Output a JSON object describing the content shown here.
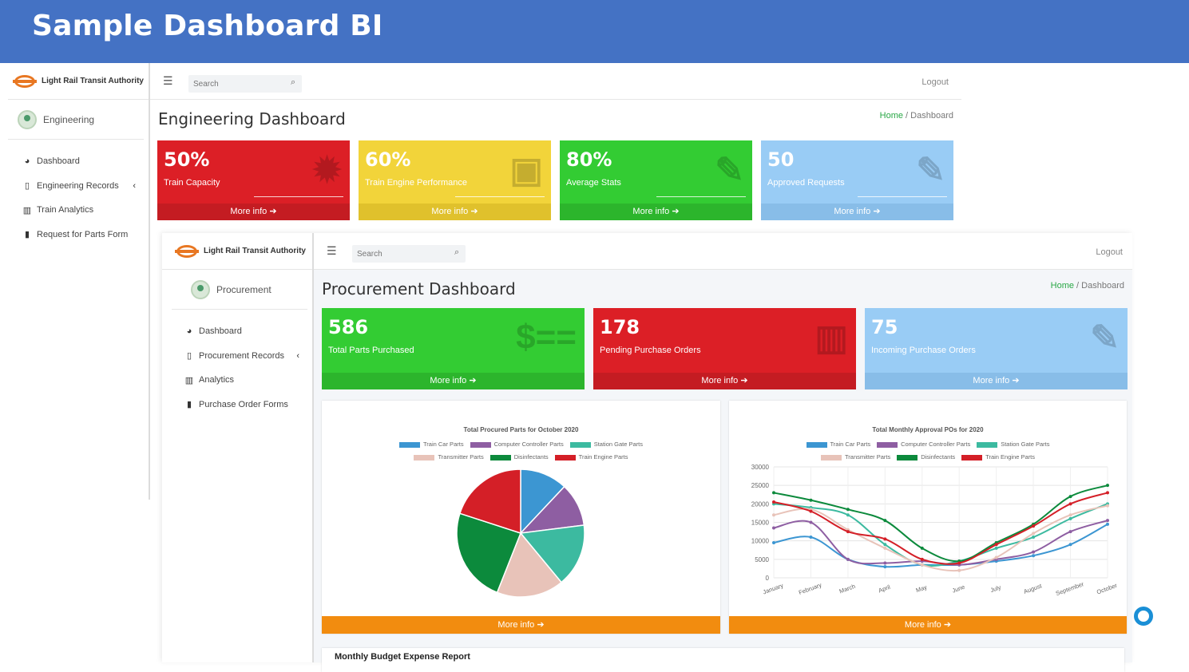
{
  "banner": {
    "title": "Sample Dashboard BI"
  },
  "eng": {
    "brand": "Light Rail Transit Authority",
    "user": "Engineering",
    "menu": [
      {
        "icon": "tachometer-icon",
        "glyph": "◕",
        "label": "Dashboard"
      },
      {
        "icon": "clipboard-icon",
        "glyph": "▯",
        "label": "Engineering Records",
        "chevron": "‹"
      },
      {
        "icon": "bar-chart-icon",
        "glyph": "▥",
        "label": "Train Analytics"
      },
      {
        "icon": "file-icon",
        "glyph": "▮",
        "label": "Request for Parts Form"
      }
    ],
    "search_placeholder": "Search",
    "logout": "Logout",
    "page_title": "Engineering Dashboard",
    "breadcrumb": {
      "home": "Home",
      "sep": "/",
      "current": "Dashboard"
    },
    "boxes": [
      {
        "num": "50%",
        "label": "Train Capacity",
        "foot": "More info ➔",
        "color": "#dc1f26",
        "foot_color": "#c41c22",
        "icon": "gear-icon",
        "glyph": "✹"
      },
      {
        "num": "60%",
        "label": "Train Engine Performance",
        "foot": "More info ➔",
        "color": "#f2d43a",
        "foot_color": "#e0c12c",
        "icon": "train-icon",
        "glyph": "▣"
      },
      {
        "num": "80%",
        "label": "Average Stats",
        "foot": "More info ➔",
        "color": "#33cc33",
        "foot_color": "#2cb52c",
        "icon": "signature-icon",
        "glyph": "✎"
      },
      {
        "num": "50",
        "label": "Approved Requests",
        "foot": "More info ➔",
        "color": "#99ccf5",
        "foot_color": "#88bde8",
        "icon": "signature-icon",
        "glyph": "✎"
      }
    ]
  },
  "pro": {
    "brand": "Light Rail Transit Authority",
    "user": "Procurement",
    "menu": [
      {
        "icon": "tachometer-icon",
        "glyph": "◕",
        "label": "Dashboard"
      },
      {
        "icon": "clipboard-icon",
        "glyph": "▯",
        "label": "Procurement Records",
        "chevron": "‹"
      },
      {
        "icon": "bar-chart-icon",
        "glyph": "▥",
        "label": "Analytics"
      },
      {
        "icon": "file-icon",
        "glyph": "▮",
        "label": "Purchase Order Forms"
      }
    ],
    "search_placeholder": "Search",
    "logout": "Logout",
    "page_title": "Procurement Dashboard",
    "breadcrumb": {
      "home": "Home",
      "sep": "/",
      "current": "Dashboard"
    },
    "boxes": [
      {
        "num": "586",
        "label": "Total Parts Purchased",
        "foot": "More info ➔",
        "color": "#33cc33",
        "foot_color": "#2cb52c",
        "icon": "money-icon",
        "glyph": "$=="
      },
      {
        "num": "178",
        "label": "Pending Purchase Orders",
        "foot": "More info ➔",
        "color": "#dc1f26",
        "foot_color": "#c41c22",
        "icon": "bar-chart-icon",
        "glyph": "▥"
      },
      {
        "num": "75",
        "label": "Incoming Purchase Orders",
        "foot": "More info ➔",
        "color": "#99ccf5",
        "foot_color": "#88bde8",
        "icon": "signature-icon",
        "glyph": "✎"
      }
    ],
    "chart_footer": "More info ➔",
    "bottom_card_title": "Monthly Budget Expense Report"
  },
  "legend_colors": [
    "#3c96d2",
    "#8e5ea2",
    "#3cbaa0",
    "#e8c3b9",
    "#0c8a3c",
    "#d41f27"
  ],
  "chart_data": [
    {
      "type": "pie",
      "title": "Total Procured Parts for October 2020",
      "categories": [
        "Train Car Parts",
        "Computer Controller Parts",
        "Station Gate Parts",
        "Transmitter Parts",
        "Disinfectants",
        "Train Engine Parts"
      ],
      "values": [
        12,
        11,
        16,
        17,
        24,
        20
      ]
    },
    {
      "type": "line",
      "title": "Total Monthly Approval POs for 2020",
      "x": [
        "January",
        "February",
        "March",
        "April",
        "May",
        "June",
        "July",
        "August",
        "September",
        "October"
      ],
      "ylim": [
        0,
        30000
      ],
      "yticks": [
        0,
        5000,
        10000,
        15000,
        20000,
        25000,
        30000
      ],
      "series": [
        {
          "name": "Train Car Parts",
          "values": [
            9500,
            11000,
            5000,
            3000,
            3500,
            3500,
            4500,
            6000,
            9000,
            14500
          ]
        },
        {
          "name": "Computer Controller Parts",
          "values": [
            13500,
            15000,
            5000,
            4000,
            4500,
            3500,
            5000,
            7000,
            12500,
            15500
          ]
        },
        {
          "name": "Station Gate Parts",
          "values": [
            20000,
            19000,
            17000,
            9000,
            3500,
            4500,
            8000,
            11000,
            16000,
            20000
          ]
        },
        {
          "name": "Transmitter Parts",
          "values": [
            17000,
            18500,
            13000,
            8000,
            3500,
            2000,
            5500,
            12000,
            17000,
            19500
          ]
        },
        {
          "name": "Disinfectants",
          "values": [
            23000,
            21000,
            18500,
            15500,
            8000,
            4500,
            9500,
            14500,
            22000,
            25000
          ]
        },
        {
          "name": "Train Engine Parts",
          "values": [
            20500,
            18000,
            12500,
            10500,
            5000,
            4000,
            9000,
            14000,
            20000,
            23000
          ]
        }
      ]
    }
  ]
}
